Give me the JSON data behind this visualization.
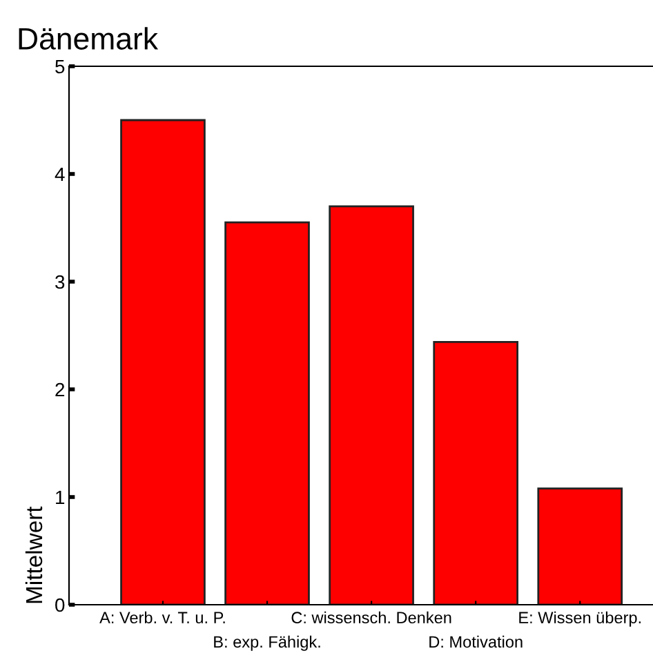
{
  "chart_data": {
    "type": "bar",
    "title": "Dänemark",
    "ylabel": "Mittelwert",
    "categories": [
      "A: Verb. v. T. u. P.",
      "B: exp. Fähigk.",
      "C: wissensch. Denken",
      "D: Motivation",
      "E: Wissen überp."
    ],
    "values": [
      4.5,
      3.55,
      3.7,
      2.44,
      1.08
    ],
    "color": "#ff0000",
    "ylim": [
      0,
      5
    ],
    "yticks": [
      0,
      1,
      2,
      3,
      4,
      5
    ],
    "grid": false
  }
}
